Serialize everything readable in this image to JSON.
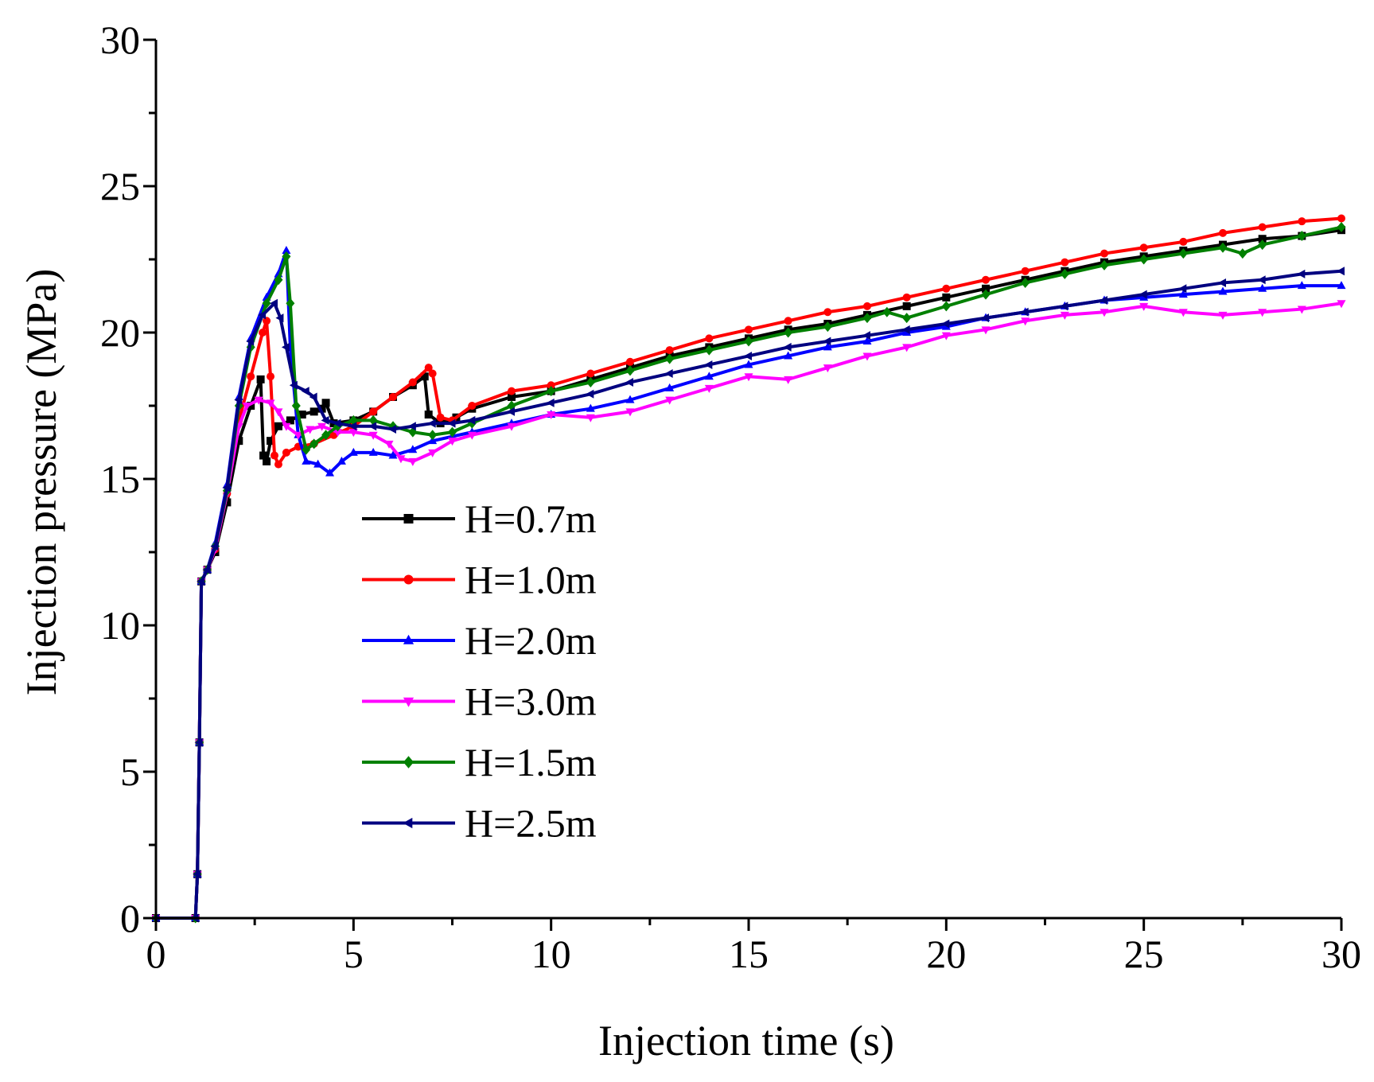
{
  "chart_data": {
    "type": "line",
    "title": "",
    "xlabel": "Injection time (s)",
    "ylabel": "Injection pressure (MPa)",
    "xlim": [
      0,
      30
    ],
    "ylim": [
      0,
      30
    ],
    "x_ticks": [
      "0",
      "5",
      "10",
      "15",
      "20",
      "25",
      "30"
    ],
    "y_ticks": [
      "0",
      "5",
      "10",
      "15",
      "20",
      "25",
      "30"
    ],
    "grid": false,
    "legend_position": "center-left",
    "series": [
      {
        "name": "H=0.7m",
        "color": "#000000",
        "marker": "square",
        "points": [
          [
            0,
            0
          ],
          [
            1,
            0
          ],
          [
            1.05,
            1.5
          ],
          [
            1.1,
            6
          ],
          [
            1.15,
            11.5
          ],
          [
            1.3,
            11.9
          ],
          [
            1.5,
            12.5
          ],
          [
            1.8,
            14.2
          ],
          [
            2.1,
            16.3
          ],
          [
            2.4,
            17.5
          ],
          [
            2.65,
            18.4
          ],
          [
            2.72,
            15.8
          ],
          [
            2.8,
            15.6
          ],
          [
            2.9,
            16.3
          ],
          [
            3.1,
            16.8
          ],
          [
            3.4,
            17.0
          ],
          [
            3.7,
            17.2
          ],
          [
            4.0,
            17.3
          ],
          [
            4.2,
            17.4
          ],
          [
            4.3,
            17.6
          ],
          [
            4.5,
            16.9
          ],
          [
            5,
            17.0
          ],
          [
            5.5,
            17.3
          ],
          [
            6,
            17.8
          ],
          [
            6.5,
            18.2
          ],
          [
            6.8,
            18.5
          ],
          [
            6.9,
            17.2
          ],
          [
            7.2,
            16.9
          ],
          [
            7.6,
            17.1
          ],
          [
            8,
            17.4
          ],
          [
            9,
            17.8
          ],
          [
            10,
            18.0
          ],
          [
            11,
            18.4
          ],
          [
            12,
            18.8
          ],
          [
            13,
            19.2
          ],
          [
            14,
            19.5
          ],
          [
            15,
            19.8
          ],
          [
            16,
            20.1
          ],
          [
            17,
            20.3
          ],
          [
            18,
            20.6
          ],
          [
            19,
            20.9
          ],
          [
            20,
            21.2
          ],
          [
            21,
            21.5
          ],
          [
            22,
            21.8
          ],
          [
            23,
            22.1
          ],
          [
            24,
            22.4
          ],
          [
            25,
            22.6
          ],
          [
            26,
            22.8
          ],
          [
            27,
            23.0
          ],
          [
            28,
            23.2
          ],
          [
            29,
            23.3
          ],
          [
            30,
            23.5
          ]
        ]
      },
      {
        "name": "H=1.0m",
        "color": "#ff0000",
        "marker": "circle",
        "points": [
          [
            0,
            0
          ],
          [
            1,
            0
          ],
          [
            1.05,
            1.5
          ],
          [
            1.1,
            6
          ],
          [
            1.15,
            11.5
          ],
          [
            1.3,
            11.9
          ],
          [
            1.5,
            12.6
          ],
          [
            1.8,
            14.5
          ],
          [
            2.1,
            17.0
          ],
          [
            2.4,
            18.5
          ],
          [
            2.7,
            20.0
          ],
          [
            2.8,
            20.4
          ],
          [
            2.9,
            18.5
          ],
          [
            3.0,
            15.8
          ],
          [
            3.1,
            15.5
          ],
          [
            3.3,
            15.9
          ],
          [
            3.6,
            16.1
          ],
          [
            4.0,
            16.2
          ],
          [
            4.5,
            16.5
          ],
          [
            5,
            16.8
          ],
          [
            5.5,
            17.3
          ],
          [
            6,
            17.8
          ],
          [
            6.5,
            18.3
          ],
          [
            6.9,
            18.8
          ],
          [
            7.0,
            18.6
          ],
          [
            7.2,
            17.1
          ],
          [
            7.5,
            17.0
          ],
          [
            8,
            17.5
          ],
          [
            9,
            18.0
          ],
          [
            10,
            18.2
          ],
          [
            11,
            18.6
          ],
          [
            12,
            19.0
          ],
          [
            13,
            19.4
          ],
          [
            14,
            19.8
          ],
          [
            15,
            20.1
          ],
          [
            16,
            20.4
          ],
          [
            17,
            20.7
          ],
          [
            18,
            20.9
          ],
          [
            19,
            21.2
          ],
          [
            20,
            21.5
          ],
          [
            21,
            21.8
          ],
          [
            22,
            22.1
          ],
          [
            23,
            22.4
          ],
          [
            24,
            22.7
          ],
          [
            25,
            22.9
          ],
          [
            26,
            23.1
          ],
          [
            27,
            23.4
          ],
          [
            28,
            23.6
          ],
          [
            29,
            23.8
          ],
          [
            30,
            23.9
          ]
        ]
      },
      {
        "name": "H=2.0m",
        "color": "#0000ff",
        "marker": "triangle-up",
        "points": [
          [
            0,
            0
          ],
          [
            1,
            0
          ],
          [
            1.05,
            1.5
          ],
          [
            1.1,
            6
          ],
          [
            1.15,
            11.5
          ],
          [
            1.3,
            11.9
          ],
          [
            1.5,
            12.8
          ],
          [
            1.8,
            14.8
          ],
          [
            2.1,
            17.8
          ],
          [
            2.4,
            19.8
          ],
          [
            2.8,
            21.2
          ],
          [
            3.1,
            22.0
          ],
          [
            3.3,
            22.8
          ],
          [
            3.4,
            19.5
          ],
          [
            3.6,
            16.5
          ],
          [
            3.8,
            15.6
          ],
          [
            4.1,
            15.5
          ],
          [
            4.4,
            15.2
          ],
          [
            4.7,
            15.6
          ],
          [
            5,
            15.9
          ],
          [
            5.5,
            15.9
          ],
          [
            6,
            15.8
          ],
          [
            6.5,
            16.0
          ],
          [
            7,
            16.3
          ],
          [
            8,
            16.6
          ],
          [
            9,
            16.9
          ],
          [
            10,
            17.2
          ],
          [
            11,
            17.4
          ],
          [
            12,
            17.7
          ],
          [
            13,
            18.1
          ],
          [
            14,
            18.5
          ],
          [
            15,
            18.9
          ],
          [
            16,
            19.2
          ],
          [
            17,
            19.5
          ],
          [
            18,
            19.7
          ],
          [
            19,
            20.0
          ],
          [
            20,
            20.2
          ],
          [
            21,
            20.5
          ],
          [
            22,
            20.7
          ],
          [
            23,
            20.9
          ],
          [
            24,
            21.1
          ],
          [
            25,
            21.2
          ],
          [
            26,
            21.3
          ],
          [
            27,
            21.4
          ],
          [
            28,
            21.5
          ],
          [
            29,
            21.6
          ],
          [
            30,
            21.6
          ]
        ]
      },
      {
        "name": "H=3.0m",
        "color": "#ff00ff",
        "marker": "triangle-down",
        "points": [
          [
            0,
            0
          ],
          [
            1,
            0
          ],
          [
            1.05,
            1.5
          ],
          [
            1.1,
            6
          ],
          [
            1.15,
            11.5
          ],
          [
            1.3,
            11.9
          ],
          [
            1.5,
            12.6
          ],
          [
            1.8,
            14.5
          ],
          [
            2.1,
            16.8
          ],
          [
            2.3,
            17.5
          ],
          [
            2.6,
            17.7
          ],
          [
            2.9,
            17.6
          ],
          [
            3.1,
            17.3
          ],
          [
            3.3,
            16.8
          ],
          [
            3.6,
            16.5
          ],
          [
            3.9,
            16.7
          ],
          [
            4.2,
            16.8
          ],
          [
            4.6,
            16.6
          ],
          [
            5,
            16.6
          ],
          [
            5.5,
            16.5
          ],
          [
            5.9,
            16.2
          ],
          [
            6.2,
            15.7
          ],
          [
            6.5,
            15.6
          ],
          [
            7,
            15.9
          ],
          [
            7.5,
            16.3
          ],
          [
            8,
            16.5
          ],
          [
            9,
            16.8
          ],
          [
            10,
            17.2
          ],
          [
            11,
            17.1
          ],
          [
            12,
            17.3
          ],
          [
            13,
            17.7
          ],
          [
            14,
            18.1
          ],
          [
            15,
            18.5
          ],
          [
            16,
            18.4
          ],
          [
            17,
            18.8
          ],
          [
            18,
            19.2
          ],
          [
            19,
            19.5
          ],
          [
            20,
            19.9
          ],
          [
            21,
            20.1
          ],
          [
            22,
            20.4
          ],
          [
            23,
            20.6
          ],
          [
            24,
            20.7
          ],
          [
            25,
            20.9
          ],
          [
            26,
            20.7
          ],
          [
            27,
            20.6
          ],
          [
            28,
            20.7
          ],
          [
            29,
            20.8
          ],
          [
            30,
            21.0
          ]
        ]
      },
      {
        "name": "H=1.5m",
        "color": "#008000",
        "marker": "diamond",
        "points": [
          [
            0,
            0
          ],
          [
            1,
            0
          ],
          [
            1.05,
            1.5
          ],
          [
            1.1,
            6
          ],
          [
            1.15,
            11.5
          ],
          [
            1.3,
            11.9
          ],
          [
            1.5,
            12.7
          ],
          [
            1.8,
            14.6
          ],
          [
            2.1,
            17.5
          ],
          [
            2.4,
            19.5
          ],
          [
            2.8,
            21.0
          ],
          [
            3.1,
            21.8
          ],
          [
            3.3,
            22.6
          ],
          [
            3.4,
            21.0
          ],
          [
            3.55,
            17.5
          ],
          [
            3.8,
            16.0
          ],
          [
            4.0,
            16.2
          ],
          [
            4.3,
            16.5
          ],
          [
            4.6,
            16.8
          ],
          [
            5,
            17.0
          ],
          [
            5.5,
            17.0
          ],
          [
            6,
            16.8
          ],
          [
            6.5,
            16.6
          ],
          [
            7,
            16.5
          ],
          [
            7.5,
            16.6
          ],
          [
            8,
            16.9
          ],
          [
            9,
            17.5
          ],
          [
            10,
            18.0
          ],
          [
            11,
            18.3
          ],
          [
            12,
            18.7
          ],
          [
            13,
            19.1
          ],
          [
            14,
            19.4
          ],
          [
            15,
            19.7
          ],
          [
            16,
            20.0
          ],
          [
            17,
            20.2
          ],
          [
            18,
            20.5
          ],
          [
            18.5,
            20.7
          ],
          [
            19,
            20.5
          ],
          [
            20,
            20.9
          ],
          [
            21,
            21.3
          ],
          [
            22,
            21.7
          ],
          [
            23,
            22.0
          ],
          [
            24,
            22.3
          ],
          [
            25,
            22.5
          ],
          [
            26,
            22.7
          ],
          [
            27,
            22.9
          ],
          [
            27.5,
            22.7
          ],
          [
            28,
            23.0
          ],
          [
            29,
            23.3
          ],
          [
            30,
            23.6
          ]
        ]
      },
      {
        "name": "H=2.5m",
        "color": "#000080",
        "marker": "triangle-left",
        "points": [
          [
            0,
            0
          ],
          [
            1,
            0
          ],
          [
            1.05,
            1.5
          ],
          [
            1.1,
            6
          ],
          [
            1.15,
            11.5
          ],
          [
            1.3,
            11.9
          ],
          [
            1.5,
            12.7
          ],
          [
            1.8,
            14.7
          ],
          [
            2.1,
            17.7
          ],
          [
            2.4,
            19.7
          ],
          [
            2.7,
            20.6
          ],
          [
            3.0,
            21.0
          ],
          [
            3.15,
            20.5
          ],
          [
            3.3,
            19.5
          ],
          [
            3.5,
            18.2
          ],
          [
            3.8,
            18.0
          ],
          [
            4.0,
            17.8
          ],
          [
            4.3,
            17.0
          ],
          [
            4.6,
            16.9
          ],
          [
            5,
            16.8
          ],
          [
            5.5,
            16.8
          ],
          [
            6,
            16.7
          ],
          [
            6.5,
            16.8
          ],
          [
            7,
            16.9
          ],
          [
            7.5,
            16.9
          ],
          [
            8,
            17.0
          ],
          [
            9,
            17.3
          ],
          [
            10,
            17.6
          ],
          [
            11,
            17.9
          ],
          [
            12,
            18.3
          ],
          [
            13,
            18.6
          ],
          [
            14,
            18.9
          ],
          [
            15,
            19.2
          ],
          [
            16,
            19.5
          ],
          [
            17,
            19.7
          ],
          [
            18,
            19.9
          ],
          [
            19,
            20.1
          ],
          [
            20,
            20.3
          ],
          [
            21,
            20.5
          ],
          [
            22,
            20.7
          ],
          [
            23,
            20.9
          ],
          [
            24,
            21.1
          ],
          [
            25,
            21.3
          ],
          [
            26,
            21.5
          ],
          [
            27,
            21.7
          ],
          [
            28,
            21.8
          ],
          [
            29,
            22.0
          ],
          [
            30,
            22.1
          ]
        ]
      }
    ]
  }
}
